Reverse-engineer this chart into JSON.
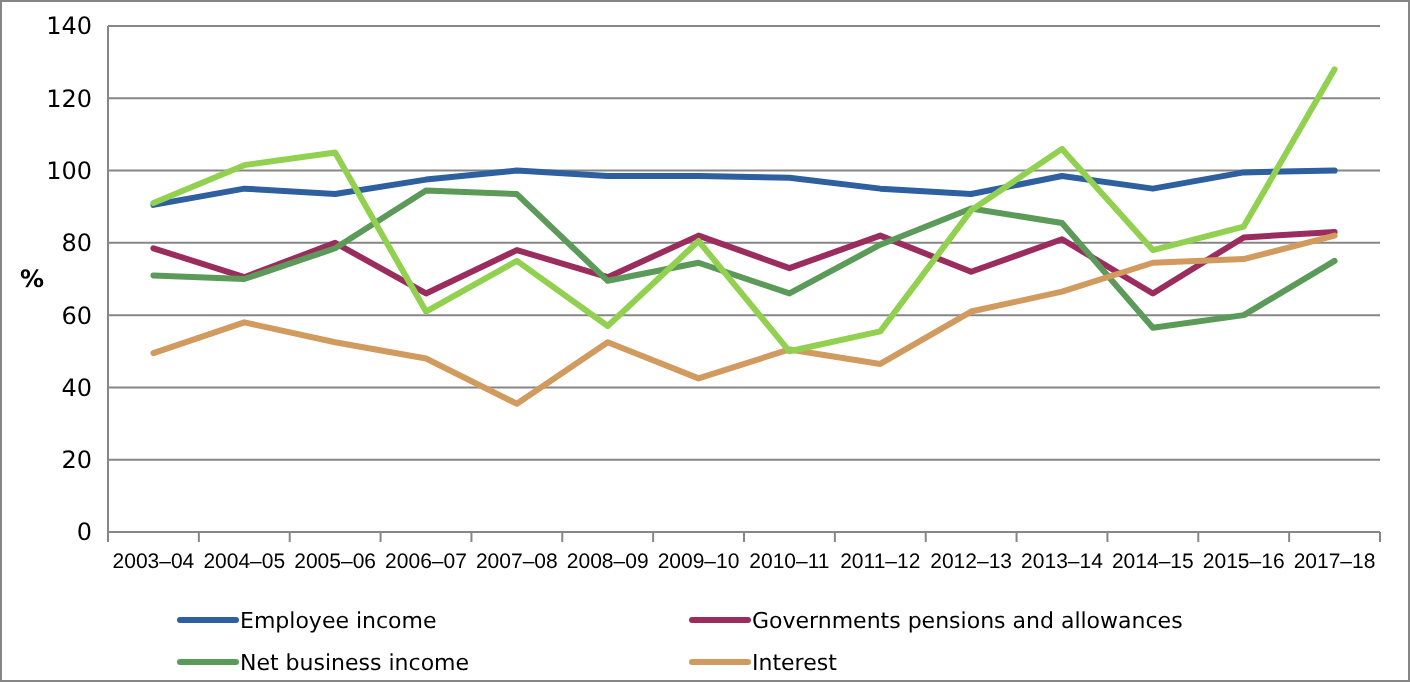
{
  "chart_data": {
    "type": "line",
    "ylabel": "%",
    "categories": [
      "2003–04",
      "2004–05",
      "2005–06",
      "2006–07",
      "2007–08",
      "2008–09",
      "2009–10",
      "2010–11",
      "2011–12",
      "2012–13",
      "2013–14",
      "2014–15",
      "2015–16",
      "2017–18"
    ],
    "ylim": [
      0,
      140
    ],
    "yticks": [
      0,
      20,
      40,
      60,
      80,
      100,
      120,
      140
    ],
    "grid": "y",
    "legend": "bottom",
    "marker": "none",
    "line_style": "solid",
    "series": [
      {
        "name": "Employee income",
        "color": "#2e5f9e",
        "values": [
          90.5,
          95,
          93.5,
          97.5,
          100,
          98.5,
          98.5,
          98,
          95,
          93.5,
          98.5,
          95,
          99.5,
          100
        ]
      },
      {
        "name": "Governments pensions and allowances",
        "color": "#9b2d5e",
        "values": [
          78.5,
          70.5,
          80,
          66,
          78,
          70.5,
          82,
          73,
          82,
          72,
          81,
          66,
          81.5,
          83
        ]
      },
      {
        "name": "Net business income",
        "color": "#5b9a58",
        "values": [
          71,
          70,
          78.5,
          94.5,
          93.5,
          69.5,
          74.5,
          66,
          79.5,
          89.5,
          85.5,
          56.5,
          60,
          75
        ]
      },
      {
        "name": "Interest",
        "color": "#d19b5f",
        "values": [
          49.5,
          58,
          52.5,
          48,
          35.5,
          52.5,
          42.5,
          50.5,
          46.5,
          61,
          66.5,
          74.5,
          75.5,
          82
        ]
      },
      {
        "color": "#92d050",
        "values": [
          91,
          101.5,
          105,
          61,
          75,
          57,
          80.5,
          50,
          55.5,
          89,
          106,
          78,
          84.5,
          128
        ]
      }
    ]
  }
}
